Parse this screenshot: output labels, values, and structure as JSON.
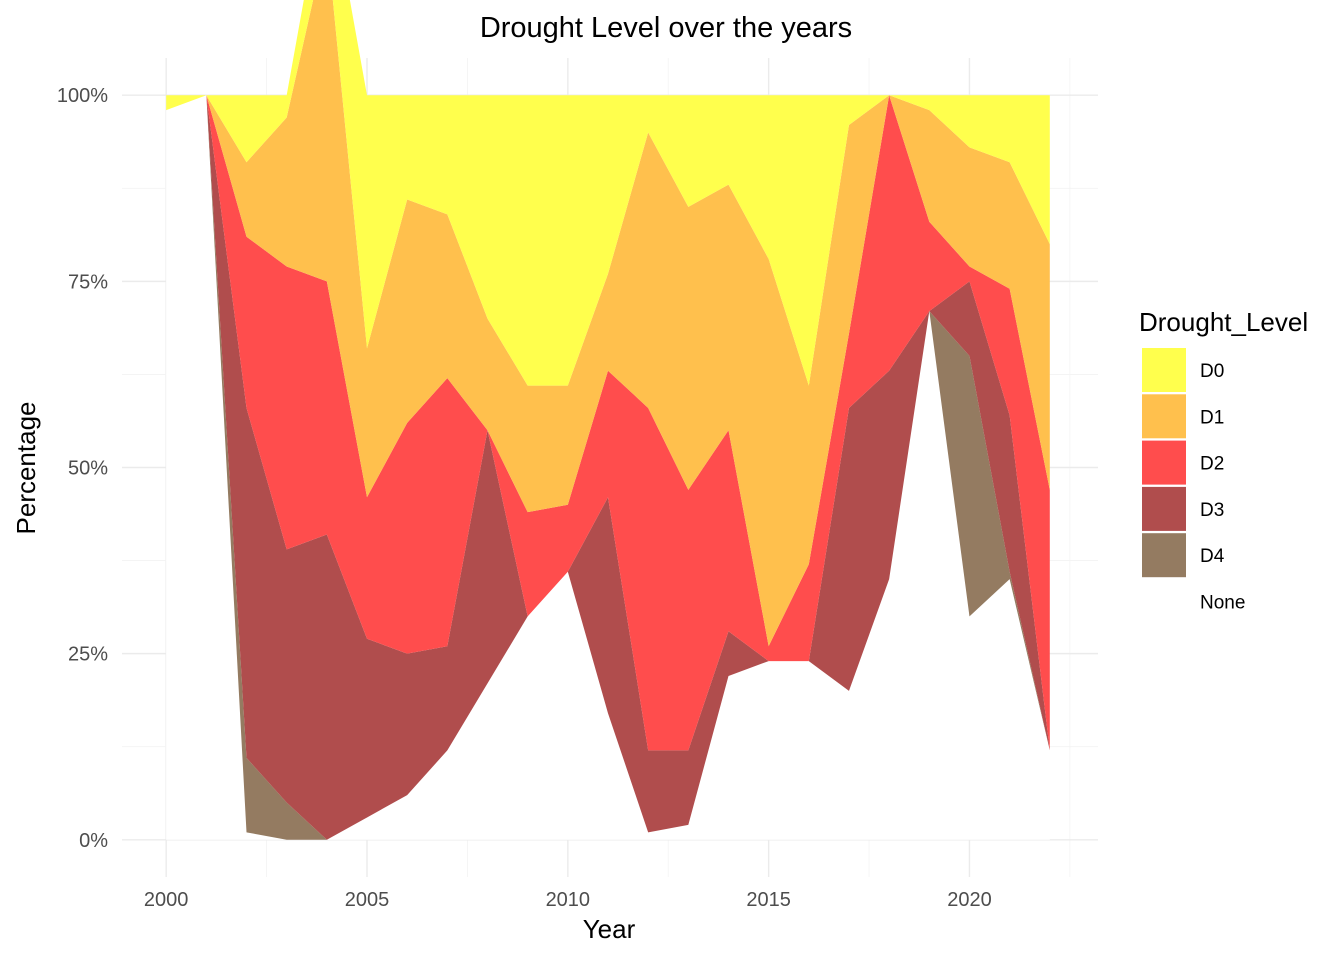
{
  "chart_data": {
    "type": "area",
    "title": "Drought Level over the years",
    "xlabel": "Year",
    "ylabel": "Percentage",
    "x_ticks": [
      2000,
      2005,
      2010,
      2015,
      2020
    ],
    "y_ticks": [
      {
        "value": 0,
        "label": "0%"
      },
      {
        "value": 25,
        "label": "25%"
      },
      {
        "value": 50,
        "label": "50%"
      },
      {
        "value": 75,
        "label": "75%"
      },
      {
        "value": 100,
        "label": "100%"
      }
    ],
    "xlim": [
      1998.9,
      2023.2
    ],
    "ylim": [
      -5,
      105
    ],
    "grid": true,
    "legend": {
      "title": "Drought_Level",
      "placement": "right"
    },
    "x": [
      2000,
      2001,
      2002,
      2003,
      2004,
      2005,
      2006,
      2007,
      2008,
      2009,
      2010,
      2011,
      2012,
      2013,
      2014,
      2015,
      2016,
      2017,
      2018,
      2019,
      2020,
      2021,
      2022
    ],
    "series": [
      {
        "name": "D0",
        "color": "#ffff4d",
        "values": [
          2,
          0,
          9,
          3,
          9,
          34,
          14,
          16,
          30,
          39,
          39,
          24,
          5,
          15,
          12,
          22,
          39,
          4,
          0,
          2,
          7,
          9,
          20
        ]
      },
      {
        "name": "D1",
        "color": "#ffc04d",
        "values": [
          0,
          0,
          10,
          20,
          46,
          20,
          30,
          22,
          15,
          17,
          16,
          13,
          37,
          38,
          33,
          52,
          24,
          28,
          0,
          15,
          16,
          17,
          33
        ]
      },
      {
        "name": "D2",
        "color": "#ff4d4d",
        "values": [
          0,
          0,
          23,
          38,
          34,
          19,
          31,
          36,
          0,
          14,
          9,
          17,
          46,
          35,
          27,
          2,
          13,
          10,
          37,
          12,
          2,
          17,
          35
        ]
      },
      {
        "name": "D3",
        "color": "#b04d4d",
        "values": [
          0,
          0,
          47,
          34,
          41,
          24,
          19,
          14,
          34,
          0,
          0,
          29,
          11,
          10,
          6,
          0,
          0,
          38,
          28,
          0,
          10,
          21,
          0
        ]
      },
      {
        "name": "D4",
        "color": "#947b61",
        "values": [
          0,
          0,
          10,
          5,
          0,
          0,
          0,
          0,
          0,
          0,
          0,
          0,
          0,
          0,
          0,
          0,
          0,
          0,
          0,
          0,
          35,
          1,
          0
        ]
      },
      {
        "name": "None",
        "color": "#ffffff",
        "values": [
          98,
          100,
          1,
          0,
          0,
          3,
          6,
          12,
          21,
          30,
          36,
          17,
          1,
          2,
          22,
          24,
          24,
          20,
          35,
          71,
          30,
          35,
          12
        ]
      }
    ]
  }
}
